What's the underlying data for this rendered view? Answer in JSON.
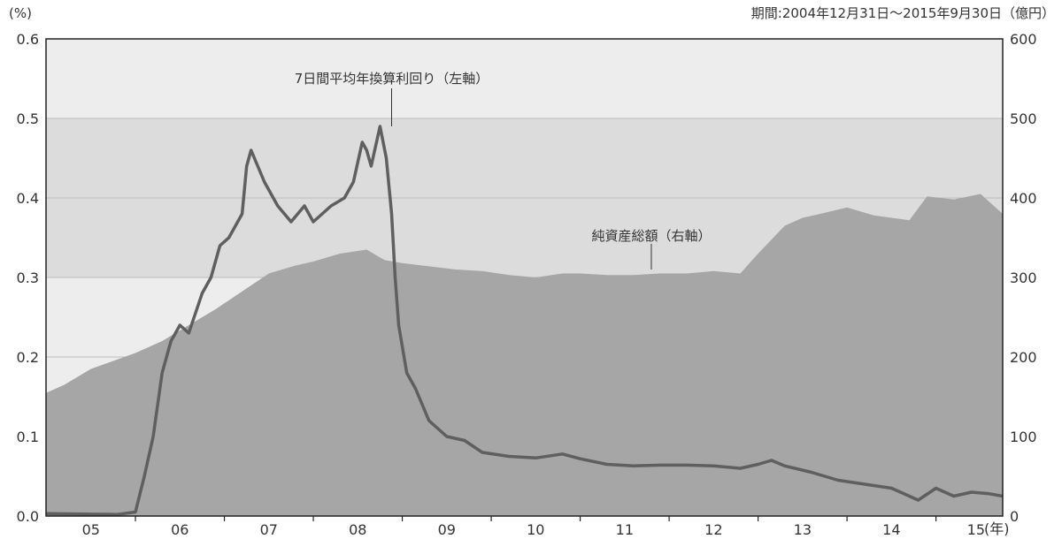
{
  "chart_data": {
    "type": "line+area",
    "period_note": "期間:2004年12月31日～2015年9月30日（億円）",
    "left_unit": "(%)",
    "right_unit": "",
    "x_unit": "(年)",
    "ylim_left": [
      0,
      0.6
    ],
    "ylim_right": [
      0,
      600
    ],
    "xlim": [
      2004.995,
      2015.75
    ],
    "left_ticks": [
      "0.0",
      "0.1",
      "0.2",
      "0.3",
      "0.4",
      "0.5",
      "0.6"
    ],
    "right_ticks": [
      "0",
      "100",
      "200",
      "300",
      "400",
      "500",
      "600"
    ],
    "x_ticks": [
      {
        "x": 2005.5,
        "label": "05"
      },
      {
        "x": 2006.5,
        "label": "06"
      },
      {
        "x": 2007.5,
        "label": "07"
      },
      {
        "x": 2008.5,
        "label": "08"
      },
      {
        "x": 2009.5,
        "label": "09"
      },
      {
        "x": 2010.5,
        "label": "10"
      },
      {
        "x": 2011.5,
        "label": "11"
      },
      {
        "x": 2012.5,
        "label": "12"
      },
      {
        "x": 2013.5,
        "label": "13"
      },
      {
        "x": 2014.5,
        "label": "14"
      },
      {
        "x": 2015.45,
        "label": "15"
      }
    ],
    "x_year_boundaries": [
      2006,
      2007,
      2008,
      2009,
      2010,
      2011,
      2012,
      2013,
      2014,
      2015
    ],
    "grid": true,
    "colors": {
      "area": "#a6a6a6",
      "line": "#5f5f5f",
      "background": "#ededed",
      "band": "#dcdcdc",
      "grid": "#bdbdbd"
    },
    "annotations": [
      {
        "text": "7日間平均年換算利回り（左軸）",
        "x": 2009.0,
        "y_left": 0.5
      },
      {
        "text": "純資産総額（右軸）",
        "x": 2011.8,
        "y_right": 310
      }
    ],
    "series": [
      {
        "name": "純資産総額（右軸）",
        "axis": "right",
        "type": "area",
        "x": [
          2005.0,
          2005.2,
          2005.5,
          2005.75,
          2006.0,
          2006.3,
          2006.6,
          2006.9,
          2007.1,
          2007.3,
          2007.5,
          2007.8,
          2008.0,
          2008.3,
          2008.6,
          2008.8,
          2009.0,
          2009.3,
          2009.6,
          2009.9,
          2010.2,
          2010.5,
          2010.8,
          2011.0,
          2011.3,
          2011.6,
          2011.9,
          2012.2,
          2012.5,
          2012.8,
          2013.0,
          2013.3,
          2013.5,
          2013.7,
          2014.0,
          2014.3,
          2014.5,
          2014.7,
          2014.9,
          2015.2,
          2015.5,
          2015.75
        ],
        "values": [
          155,
          165,
          185,
          195,
          205,
          220,
          240,
          260,
          275,
          290,
          305,
          315,
          320,
          330,
          335,
          322,
          318,
          314,
          310,
          308,
          303,
          300,
          305,
          305,
          303,
          303,
          305,
          305,
          308,
          305,
          330,
          365,
          375,
          380,
          388,
          378,
          375,
          372,
          402,
          398,
          405,
          380
        ]
      },
      {
        "name": "7日間平均年換算利回り（左軸）",
        "axis": "left",
        "type": "line",
        "x": [
          2005.0,
          2005.8,
          2006.0,
          2006.1,
          2006.2,
          2006.3,
          2006.4,
          2006.5,
          2006.6,
          2006.75,
          2006.85,
          2006.95,
          2007.05,
          2007.15,
          2007.2,
          2007.25,
          2007.3,
          2007.45,
          2007.6,
          2007.75,
          2007.9,
          2008.0,
          2008.1,
          2008.2,
          2008.35,
          2008.45,
          2008.55,
          2008.6,
          2008.65,
          2008.75,
          2008.82,
          2008.88,
          2008.92,
          2008.96,
          2009.05,
          2009.15,
          2009.3,
          2009.5,
          2009.7,
          2009.9,
          2010.2,
          2010.5,
          2010.8,
          2011.0,
          2011.3,
          2011.6,
          2011.9,
          2012.2,
          2012.5,
          2012.8,
          2013.0,
          2013.15,
          2013.3,
          2013.6,
          2013.9,
          2014.2,
          2014.5,
          2014.7,
          2014.8,
          2015.0,
          2015.2,
          2015.4,
          2015.6,
          2015.75
        ],
        "values": [
          0.003,
          0.002,
          0.005,
          0.05,
          0.1,
          0.18,
          0.22,
          0.24,
          0.23,
          0.28,
          0.3,
          0.34,
          0.35,
          0.37,
          0.38,
          0.44,
          0.46,
          0.42,
          0.39,
          0.37,
          0.39,
          0.37,
          0.38,
          0.39,
          0.4,
          0.42,
          0.47,
          0.46,
          0.44,
          0.49,
          0.45,
          0.38,
          0.3,
          0.24,
          0.18,
          0.16,
          0.12,
          0.1,
          0.095,
          0.08,
          0.075,
          0.073,
          0.078,
          0.072,
          0.065,
          0.063,
          0.064,
          0.064,
          0.063,
          0.06,
          0.065,
          0.07,
          0.063,
          0.055,
          0.045,
          0.04,
          0.035,
          0.025,
          0.02,
          0.035,
          0.025,
          0.03,
          0.028,
          0.025
        ]
      }
    ]
  }
}
